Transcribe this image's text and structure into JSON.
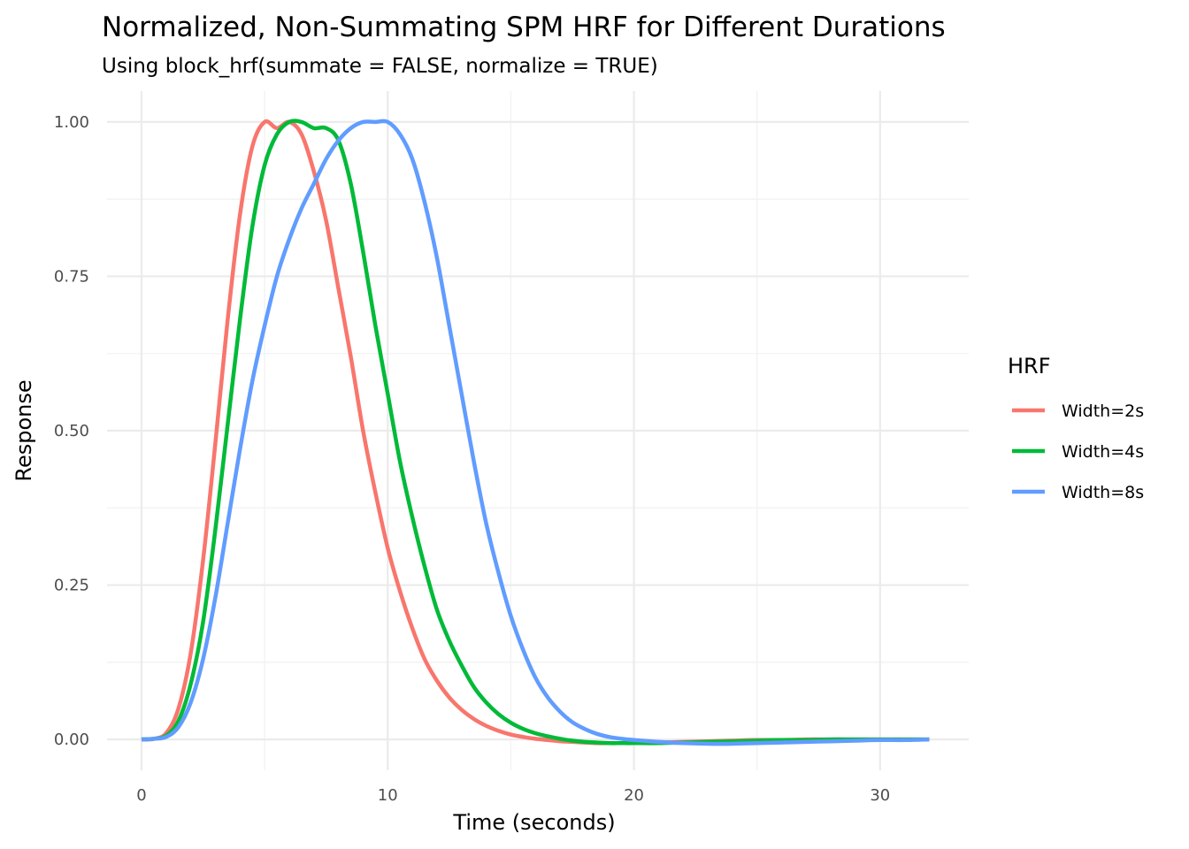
{
  "chart_data": {
    "type": "line",
    "title": "Normalized, Non-Summating SPM HRF for Different Durations",
    "subtitle": "Using block_hrf(summate = FALSE, normalize = TRUE)",
    "xlabel": "Time (seconds)",
    "ylabel": "Response",
    "xlim": [
      -1.4,
      33.6
    ],
    "ylim": [
      -0.05,
      1.05
    ],
    "x_ticks": [
      0,
      10,
      20,
      30
    ],
    "x_tick_labels": [
      "0",
      "10",
      "20",
      "30"
    ],
    "x_minor_ticks": [
      5,
      15,
      25
    ],
    "y_ticks": [
      0,
      0.25,
      0.5,
      0.75,
      1.0
    ],
    "y_tick_labels": [
      "0.00",
      "0.25",
      "0.50",
      "0.75",
      "1.00"
    ],
    "y_minor_ticks": [
      0.125,
      0.375,
      0.625,
      0.875
    ],
    "grid": true,
    "legend": {
      "title": "HRF",
      "position": "right",
      "entries": [
        "Width=2s",
        "Width=4s",
        "Width=8s"
      ]
    },
    "x": [
      0,
      0.5,
      1,
      1.5,
      2,
      2.5,
      3,
      3.5,
      4,
      4.5,
      5,
      5.5,
      6,
      6.5,
      7,
      7.5,
      8,
      8.5,
      9,
      9.5,
      10,
      10.5,
      11,
      11.5,
      12,
      12.5,
      13,
      13.5,
      14,
      14.5,
      15,
      15.5,
      16,
      16.5,
      17,
      17.5,
      18,
      18.5,
      19,
      19.5,
      20,
      21,
      22,
      23,
      24,
      25,
      26,
      27,
      28,
      29,
      30,
      31,
      32
    ],
    "series": [
      {
        "name": "Width=2s",
        "color": "#F8766D",
        "values": [
          0,
          0.001,
          0.01,
          0.05,
          0.14,
          0.29,
          0.48,
          0.68,
          0.85,
          0.96,
          1.0,
          0.99,
          1.0,
          0.98,
          0.92,
          0.84,
          0.73,
          0.62,
          0.5,
          0.4,
          0.31,
          0.24,
          0.18,
          0.13,
          0.095,
          0.068,
          0.048,
          0.033,
          0.022,
          0.014,
          0.008,
          0.004,
          0.001,
          -0.001,
          -0.003,
          -0.004,
          -0.005,
          -0.006,
          -0.006,
          -0.006,
          -0.006,
          -0.005,
          -0.004,
          -0.003,
          -0.002,
          -0.001,
          -0.001,
          0,
          0,
          0,
          0,
          0,
          0
        ]
      },
      {
        "name": "Width=4s",
        "color": "#00BA38",
        "values": [
          0,
          0.001,
          0.006,
          0.03,
          0.09,
          0.19,
          0.34,
          0.51,
          0.68,
          0.83,
          0.93,
          0.98,
          1.0,
          1.0,
          0.99,
          0.99,
          0.97,
          0.9,
          0.79,
          0.67,
          0.56,
          0.45,
          0.36,
          0.28,
          0.21,
          0.16,
          0.12,
          0.085,
          0.06,
          0.041,
          0.027,
          0.017,
          0.01,
          0.005,
          0.001,
          -0.002,
          -0.004,
          -0.005,
          -0.006,
          -0.006,
          -0.006,
          -0.006,
          -0.005,
          -0.004,
          -0.003,
          -0.002,
          -0.001,
          -0.001,
          0,
          0,
          0,
          0,
          0
        ]
      },
      {
        "name": "Width=8s",
        "color": "#619CFF",
        "values": [
          0,
          0.001,
          0.004,
          0.02,
          0.06,
          0.13,
          0.23,
          0.35,
          0.47,
          0.58,
          0.67,
          0.75,
          0.81,
          0.86,
          0.9,
          0.94,
          0.97,
          0.99,
          1.0,
          1.0,
          1.0,
          0.98,
          0.94,
          0.87,
          0.78,
          0.67,
          0.56,
          0.45,
          0.35,
          0.27,
          0.2,
          0.145,
          0.1,
          0.068,
          0.045,
          0.028,
          0.017,
          0.009,
          0.004,
          0.001,
          -0.001,
          -0.004,
          -0.006,
          -0.007,
          -0.007,
          -0.006,
          -0.005,
          -0.004,
          -0.003,
          -0.002,
          -0.001,
          -0.001,
          0
        ]
      }
    ]
  },
  "background_color": "#ffffff"
}
